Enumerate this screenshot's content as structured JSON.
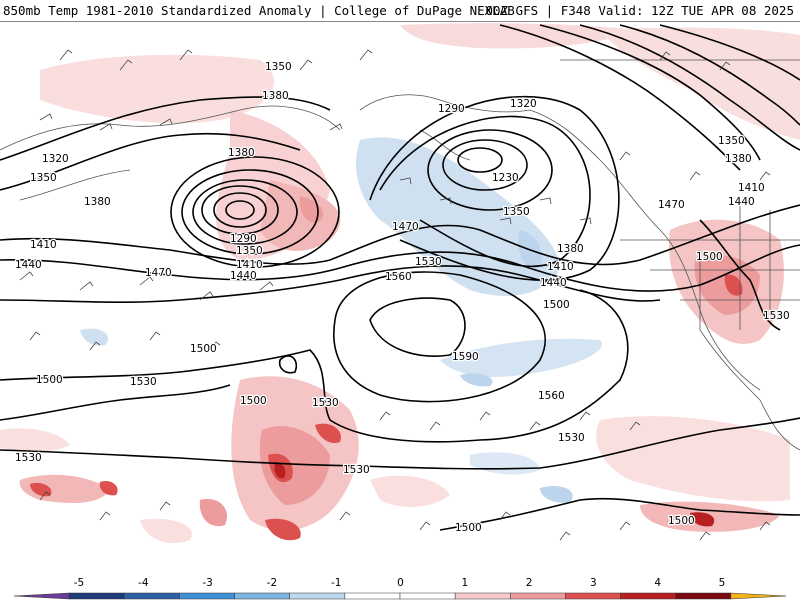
{
  "header": {
    "left_title": "850mb Temp 1981-2010 Standardized Anomaly | College of DuPage NEXLAB",
    "right_title": "00Z GFS | F348 Valid: 12Z TUE APR 08 2025"
  },
  "map": {
    "product": "850mb Temp Standardized Anomaly",
    "contour_labels": [
      {
        "id": "c1",
        "text": "1350"
      },
      {
        "id": "c2",
        "text": "1380"
      },
      {
        "id": "c3",
        "text": "1320"
      },
      {
        "id": "c4",
        "text": "1350"
      },
      {
        "id": "c5",
        "text": "1380"
      },
      {
        "id": "c6",
        "text": "1380"
      },
      {
        "id": "c7",
        "text": "1410"
      },
      {
        "id": "c8",
        "text": "1440"
      },
      {
        "id": "c9",
        "text": "1470"
      },
      {
        "id": "c10",
        "text": "1290"
      },
      {
        "id": "c11",
        "text": "1350"
      },
      {
        "id": "c12",
        "text": "1410"
      },
      {
        "id": "c13",
        "text": "1440"
      },
      {
        "id": "c14",
        "text": "1470"
      },
      {
        "id": "c15",
        "text": "1290"
      },
      {
        "id": "c16",
        "text": "1320"
      },
      {
        "id": "c17",
        "text": "1230"
      },
      {
        "id": "c18",
        "text": "1350"
      },
      {
        "id": "c19",
        "text": "1380"
      },
      {
        "id": "c20",
        "text": "1410"
      },
      {
        "id": "c21",
        "text": "1440"
      },
      {
        "id": "c22",
        "text": "1500"
      },
      {
        "id": "c23",
        "text": "1530"
      },
      {
        "id": "c24",
        "text": "1560"
      },
      {
        "id": "c25",
        "text": "1590"
      },
      {
        "id": "c26",
        "text": "1500"
      },
      {
        "id": "c27",
        "text": "1500"
      },
      {
        "id": "c28",
        "text": "1530"
      },
      {
        "id": "c29",
        "text": "1500"
      },
      {
        "id": "c30",
        "text": "1530"
      },
      {
        "id": "c31",
        "text": "1530"
      },
      {
        "id": "c32",
        "text": "1560"
      },
      {
        "id": "c33",
        "text": "1530"
      },
      {
        "id": "c34",
        "text": "1500"
      },
      {
        "id": "c35",
        "text": "1500"
      },
      {
        "id": "c36",
        "text": "1350"
      },
      {
        "id": "c37",
        "text": "1380"
      },
      {
        "id": "c38",
        "text": "1410"
      },
      {
        "id": "c39",
        "text": "1440"
      },
      {
        "id": "c40",
        "text": "1470"
      },
      {
        "id": "c41",
        "text": "1500"
      },
      {
        "id": "c42",
        "text": "1530"
      },
      {
        "id": "c43",
        "text": "1530"
      }
    ]
  },
  "colorbar": {
    "ticks": [
      "-5",
      "-4",
      "-3",
      "-2",
      "-1",
      "0",
      "1",
      "2",
      "3",
      "4",
      "5"
    ],
    "colors": [
      "#6a3d9a",
      "#1f3a78",
      "#2f5ea8",
      "#3f8fd4",
      "#7fb3e0",
      "#bdd7ee",
      "#ffffff",
      "#ffffff",
      "#f5c9c9",
      "#ec9c9c",
      "#dc5050",
      "#b82020",
      "#7a0a12",
      "#f2b21a"
    ]
  }
}
